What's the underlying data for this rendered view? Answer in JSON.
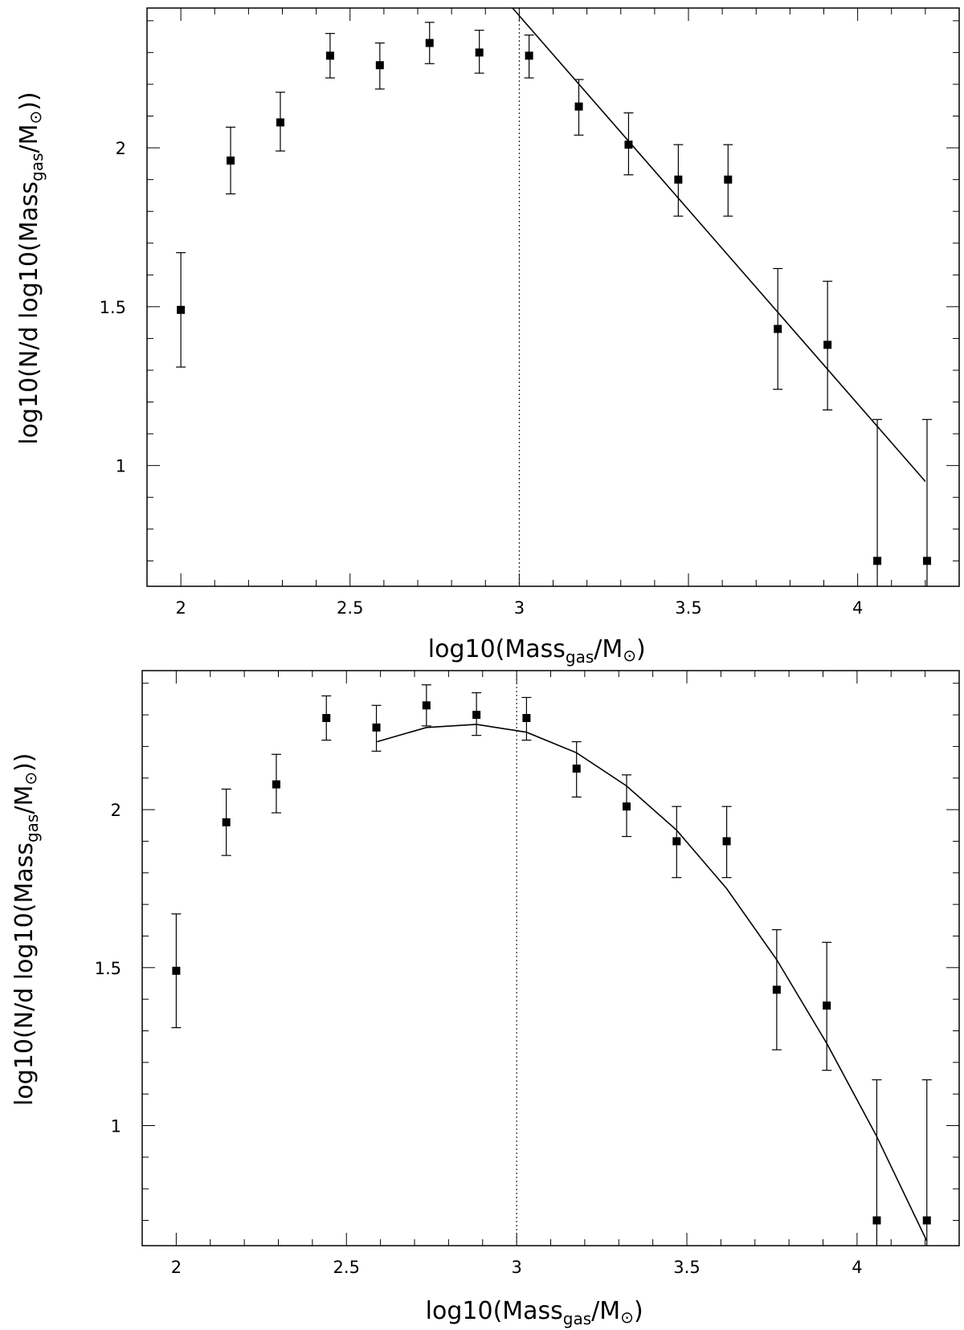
{
  "chart_data": [
    {
      "type": "scatter",
      "title": "",
      "xlabel": {
        "main": "log10(Mass",
        "sub": "gas",
        "after": "/M",
        "symbol": "⊙",
        "close": ")"
      },
      "ylabel": {
        "main": "log10(N/d log10(Mass",
        "sub": "gas",
        "after": "/M",
        "symbol": "⊙",
        "close": "))"
      },
      "xlim": [
        1.9,
        4.3
      ],
      "ylim": [
        0.62,
        2.44
      ],
      "xticks": [
        2,
        2.5,
        3,
        3.5,
        4
      ],
      "xtick_labels": [
        "2",
        "2.5",
        "3",
        "3.5",
        "4"
      ],
      "yticks": [
        1,
        1.5,
        2
      ],
      "ytick_labels": [
        "1",
        "1.5",
        "2"
      ],
      "x_minor_step": 0.1,
      "y_minor_step": 0.1,
      "grid": false,
      "reference_line_x": 3.0,
      "points": [
        {
          "x": 2.0,
          "y": 1.49,
          "lo": 1.31,
          "hi": 1.67
        },
        {
          "x": 2.147,
          "y": 1.96,
          "lo": 1.855,
          "hi": 2.065
        },
        {
          "x": 2.294,
          "y": 2.08,
          "lo": 1.99,
          "hi": 2.175
        },
        {
          "x": 2.441,
          "y": 2.29,
          "lo": 2.22,
          "hi": 2.36
        },
        {
          "x": 2.588,
          "y": 2.26,
          "lo": 2.185,
          "hi": 2.33
        },
        {
          "x": 2.735,
          "y": 2.33,
          "lo": 2.265,
          "hi": 2.395
        },
        {
          "x": 2.882,
          "y": 2.3,
          "lo": 2.235,
          "hi": 2.37
        },
        {
          "x": 3.029,
          "y": 2.29,
          "lo": 2.22,
          "hi": 2.355
        },
        {
          "x": 3.176,
          "y": 2.13,
          "lo": 2.04,
          "hi": 2.215
        },
        {
          "x": 3.323,
          "y": 2.01,
          "lo": 1.915,
          "hi": 2.11
        },
        {
          "x": 3.47,
          "y": 1.9,
          "lo": 1.785,
          "hi": 2.01
        },
        {
          "x": 3.617,
          "y": 1.9,
          "lo": 1.785,
          "hi": 2.01
        },
        {
          "x": 3.764,
          "y": 1.43,
          "lo": 1.24,
          "hi": 1.62
        },
        {
          "x": 3.911,
          "y": 1.38,
          "lo": 1.175,
          "hi": 1.58
        },
        {
          "x": 4.058,
          "y": 0.7,
          "lo": 0.62,
          "hi": 1.145
        },
        {
          "x": 4.205,
          "y": 0.7,
          "lo": 0.62,
          "hi": 1.145
        }
      ],
      "fit_line": [
        {
          "x": 2.98,
          "y": 2.44
        },
        {
          "x": 4.2,
          "y": 0.95
        }
      ]
    },
    {
      "type": "scatter",
      "title": "",
      "xlabel": {
        "main": "log10(Mass",
        "sub": "gas",
        "after": "/M",
        "symbol": "⊙",
        "close": ")"
      },
      "ylabel": {
        "main": "log10(N/d log10(Mass",
        "sub": "gas",
        "after": "/M",
        "symbol": "⊙",
        "close": "))"
      },
      "xlim": [
        1.9,
        4.3
      ],
      "ylim": [
        0.62,
        2.44
      ],
      "xticks": [
        2,
        2.5,
        3,
        3.5,
        4
      ],
      "xtick_labels": [
        "2",
        "2.5",
        "3",
        "3.5",
        "4"
      ],
      "yticks": [
        1,
        1.5,
        2
      ],
      "ytick_labels": [
        "1",
        "1.5",
        "2"
      ],
      "x_minor_step": 0.1,
      "y_minor_step": 0.1,
      "grid": false,
      "reference_line_x": 3.0,
      "points": [
        {
          "x": 2.0,
          "y": 1.49,
          "lo": 1.31,
          "hi": 1.67
        },
        {
          "x": 2.147,
          "y": 1.96,
          "lo": 1.855,
          "hi": 2.065
        },
        {
          "x": 2.294,
          "y": 2.08,
          "lo": 1.99,
          "hi": 2.175
        },
        {
          "x": 2.441,
          "y": 2.29,
          "lo": 2.22,
          "hi": 2.36
        },
        {
          "x": 2.588,
          "y": 2.26,
          "lo": 2.185,
          "hi": 2.33
        },
        {
          "x": 2.735,
          "y": 2.33,
          "lo": 2.265,
          "hi": 2.395
        },
        {
          "x": 2.882,
          "y": 2.3,
          "lo": 2.235,
          "hi": 2.37
        },
        {
          "x": 3.029,
          "y": 2.29,
          "lo": 2.22,
          "hi": 2.355
        },
        {
          "x": 3.176,
          "y": 2.13,
          "lo": 2.04,
          "hi": 2.215
        },
        {
          "x": 3.323,
          "y": 2.01,
          "lo": 1.915,
          "hi": 2.11
        },
        {
          "x": 3.47,
          "y": 1.9,
          "lo": 1.785,
          "hi": 2.01
        },
        {
          "x": 3.617,
          "y": 1.9,
          "lo": 1.785,
          "hi": 2.01
        },
        {
          "x": 3.764,
          "y": 1.43,
          "lo": 1.24,
          "hi": 1.62
        },
        {
          "x": 3.911,
          "y": 1.38,
          "lo": 1.175,
          "hi": 1.58
        },
        {
          "x": 4.058,
          "y": 0.7,
          "lo": 0.62,
          "hi": 1.145
        },
        {
          "x": 4.205,
          "y": 0.7,
          "lo": 0.62,
          "hi": 1.145
        }
      ],
      "fit_line": [
        {
          "x": 2.59,
          "y": 2.215
        },
        {
          "x": 2.735,
          "y": 2.26
        },
        {
          "x": 2.882,
          "y": 2.27
        },
        {
          "x": 3.029,
          "y": 2.245
        },
        {
          "x": 3.176,
          "y": 2.18
        },
        {
          "x": 3.323,
          "y": 2.075
        },
        {
          "x": 3.47,
          "y": 1.935
        },
        {
          "x": 3.617,
          "y": 1.75
        },
        {
          "x": 3.764,
          "y": 1.525
        },
        {
          "x": 3.911,
          "y": 1.26
        },
        {
          "x": 4.058,
          "y": 0.965
        },
        {
          "x": 4.205,
          "y": 0.635
        }
      ]
    }
  ]
}
